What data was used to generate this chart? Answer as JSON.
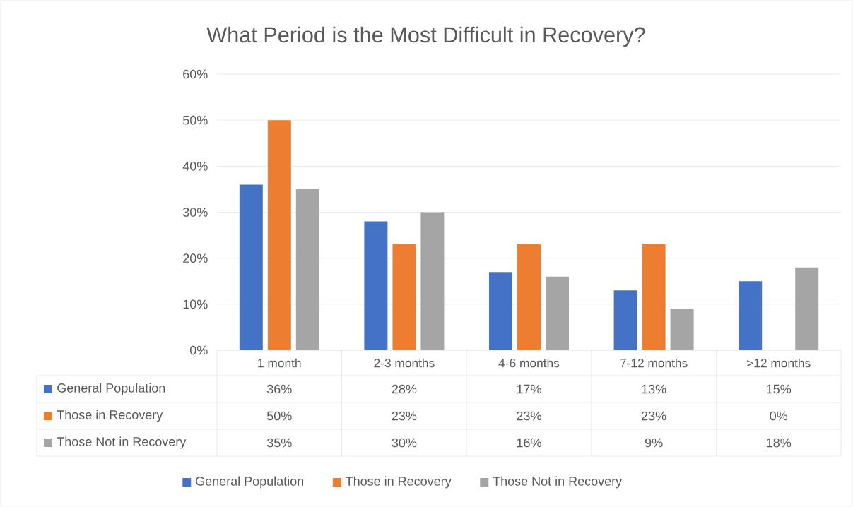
{
  "chart_data": {
    "type": "bar",
    "title": "What Period is the Most Difficult in Recovery?",
    "categories": [
      "1 month",
      "2-3 months",
      "4-6 months",
      "7-12 months",
      ">12 months"
    ],
    "series": [
      {
        "name": "General Population",
        "color": "#4472c4",
        "values": [
          36,
          28,
          17,
          13,
          15
        ],
        "value_labels": [
          "36%",
          "28%",
          "17%",
          "13%",
          "15%"
        ]
      },
      {
        "name": "Those in Recovery",
        "color": "#ed7d31",
        "values": [
          50,
          23,
          23,
          23,
          0
        ],
        "value_labels": [
          "50%",
          "23%",
          "23%",
          "23%",
          "0%"
        ]
      },
      {
        "name": "Those Not in Recovery",
        "color": "#a5a5a5",
        "values": [
          35,
          30,
          16,
          9,
          18
        ],
        "value_labels": [
          "35%",
          "30%",
          "16%",
          "9%",
          "18%"
        ]
      }
    ],
    "ylim": [
      0,
      60
    ],
    "yticks": [
      {
        "value": 0,
        "label": "0%"
      },
      {
        "value": 10,
        "label": "10%"
      },
      {
        "value": 20,
        "label": "20%"
      },
      {
        "value": 30,
        "label": "30%"
      },
      {
        "value": 40,
        "label": "40%"
      },
      {
        "value": 50,
        "label": "50%"
      },
      {
        "value": 60,
        "label": "60%"
      }
    ],
    "grid": "y",
    "legend": "bottom"
  }
}
